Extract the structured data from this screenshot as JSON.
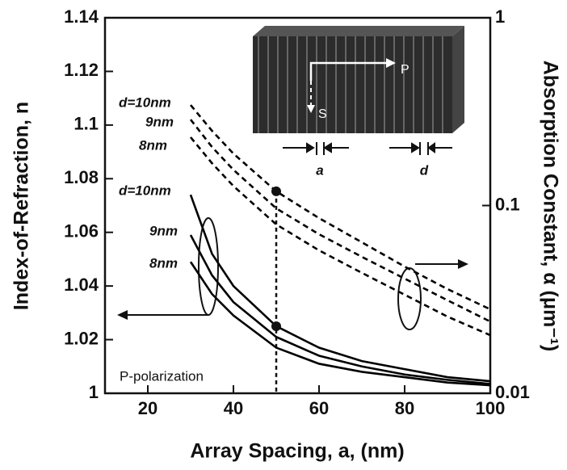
{
  "chart_data": {
    "type": "line",
    "x_label": "Array Spacing, a, (nm)",
    "y_label": "Index-of-Refraction, n",
    "y2_label": "Absorption Constant, α (μm⁻¹)",
    "x": [
      30,
      35,
      40,
      50,
      60,
      70,
      80,
      90,
      100
    ],
    "xlim": [
      10,
      100
    ],
    "xticks": [
      20,
      40,
      60,
      80,
      100
    ],
    "ylim": [
      1,
      1.14
    ],
    "yticks": [
      1,
      1.02,
      1.04,
      1.06,
      1.08,
      1.1,
      1.12,
      1.14
    ],
    "y2lim": [
      0.01,
      1
    ],
    "y2ticks": [
      0.01,
      0.1,
      1
    ],
    "y2log": true,
    "series": [
      {
        "name": "d=10nm",
        "color": "#000000",
        "dash": false,
        "values": [
          1.074,
          1.052,
          1.04,
          1.025,
          1.017,
          1.012,
          1.009,
          1.006,
          1.0045
        ]
      },
      {
        "name": "9nm",
        "color": "#000000",
        "dash": false,
        "values": [
          1.059,
          1.044,
          1.034,
          1.021,
          1.014,
          1.01,
          1.007,
          1.005,
          1.0035
        ]
      },
      {
        "name": "8nm",
        "color": "#000000",
        "dash": false,
        "values": [
          1.049,
          1.037,
          1.029,
          1.017,
          1.011,
          1.008,
          1.006,
          1.004,
          1.003
        ]
      },
      {
        "name": "d=10nm",
        "color": "#000000",
        "dash": true,
        "axis": "y2",
        "values": [
          0.343,
          0.25,
          0.189,
          0.119,
          0.0857,
          0.0637,
          0.0473,
          0.0359,
          0.028
        ]
      },
      {
        "name": "9nm",
        "color": "#000000",
        "dash": true,
        "axis": "y2",
        "values": [
          0.287,
          0.205,
          0.155,
          0.0966,
          0.0703,
          0.0533,
          0.0408,
          0.0313,
          0.0241
        ]
      },
      {
        "name": "8nm",
        "color": "#000000",
        "dash": true,
        "axis": "y2",
        "values": [
          0.231,
          0.168,
          0.127,
          0.0793,
          0.0577,
          0.0438,
          0.0335,
          0.0256,
          0.0204
        ]
      }
    ],
    "annotations": {
      "polarization": "P-polarization",
      "inset_p": "P",
      "inset_s": "S",
      "inset_a": "a",
      "inset_d": "d"
    }
  }
}
